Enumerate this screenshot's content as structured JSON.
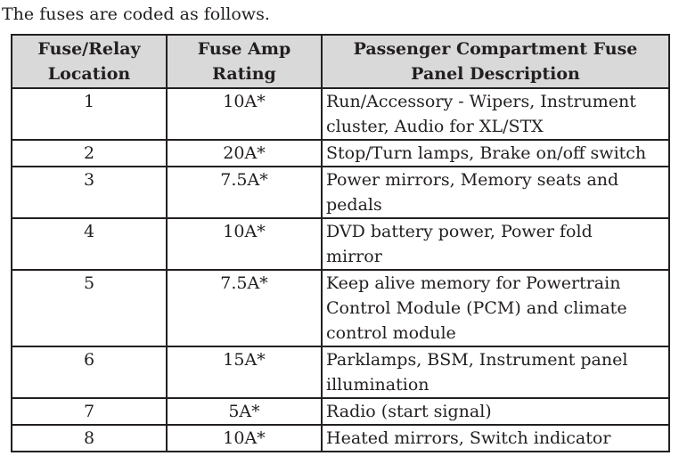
{
  "intro_text": "The fuses are coded as follows.",
  "table": {
    "headers": {
      "location": [
        "Fuse/Relay",
        "Location"
      ],
      "amp": [
        "Fuse Amp",
        "Rating"
      ],
      "description": [
        "Passenger Compartment Fuse",
        "Panel Description"
      ]
    },
    "rows": [
      {
        "location": "1",
        "amp": "10A*",
        "description": [
          "Run/Accessory - Wipers, Instrument",
          "cluster, Audio for XL/STX"
        ]
      },
      {
        "location": "2",
        "amp": "20A*",
        "description": [
          "Stop/Turn lamps, Brake on/off switch"
        ]
      },
      {
        "location": "3",
        "amp": "7.5A*",
        "description": [
          "Power mirrors, Memory seats and",
          "pedals"
        ]
      },
      {
        "location": "4",
        "amp": "10A*",
        "description": [
          "DVD battery power, Power fold",
          "mirror"
        ]
      },
      {
        "location": "5",
        "amp": "7.5A*",
        "description": [
          "Keep alive memory for Powertrain",
          "Control Module (PCM) and climate",
          "control module"
        ]
      },
      {
        "location": "6",
        "amp": "15A*",
        "description": [
          "Parklamps, BSM, Instrument panel",
          "illumination"
        ]
      },
      {
        "location": "7",
        "amp": "5A*",
        "description": [
          "Radio (start signal)"
        ]
      },
      {
        "location": "8",
        "amp": "10A*",
        "description": [
          "Heated mirrors, Switch indicator"
        ]
      }
    ]
  }
}
